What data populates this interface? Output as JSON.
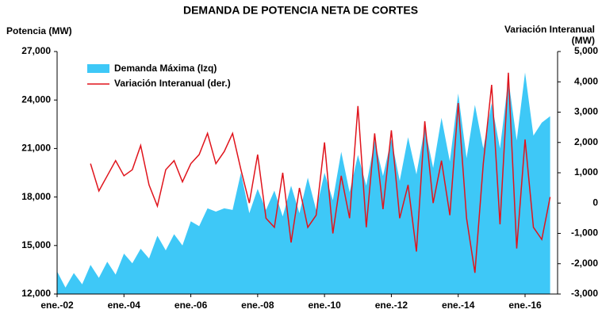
{
  "chart_data": {
    "type": "area-line",
    "title": "DEMANDA DE POTENCIA NETA DE CORTES",
    "y_label": "Potencia (MW)",
    "y2_label": "Variación Interanual (MW)",
    "categories": [
      "ene.-02",
      null,
      null,
      null,
      null,
      null,
      null,
      null,
      "ene.-04",
      null,
      null,
      null,
      null,
      null,
      null,
      null,
      "ene.-06",
      null,
      null,
      null,
      null,
      null,
      null,
      null,
      "ene.-08",
      null,
      null,
      null,
      null,
      null,
      null,
      null,
      "ene.-10",
      null,
      null,
      null,
      null,
      null,
      null,
      null,
      "ene.-12",
      null,
      null,
      null,
      null,
      null,
      null,
      null,
      "ene.-14",
      null,
      null,
      null,
      null,
      null,
      null,
      null,
      "ene.-16",
      null,
      null,
      null
    ],
    "series": [
      {
        "name": "Demanda Máxima (Izq)",
        "color": "#3ec8f7",
        "values": [
          13400,
          12400,
          13300,
          12600,
          13800,
          13000,
          14000,
          13200,
          14500,
          13900,
          14800,
          14200,
          15600,
          14700,
          15700,
          15000,
          16500,
          16200,
          17300,
          17100,
          17300,
          17200,
          19500,
          17000,
          18500,
          17200,
          18400,
          16800,
          18700,
          17000,
          19200,
          17200,
          19500,
          17800,
          20800,
          18300,
          20600,
          18700,
          21500,
          19300,
          21600,
          19000,
          21700,
          19400,
          22300,
          19800,
          22900,
          20200,
          24400,
          20400,
          23700,
          21000,
          23800,
          21000,
          25300,
          21500,
          25700,
          21800,
          22600,
          23000
        ]
      },
      {
        "name": "Variación Interanual (der.)",
        "color": "#e0141c",
        "axis": "y2",
        "values": [
          null,
          null,
          null,
          null,
          1300,
          400,
          900,
          1400,
          900,
          1100,
          1900,
          600,
          -100,
          1100,
          1400,
          700,
          1300,
          1600,
          2300,
          1300,
          1700,
          2300,
          1100,
          0,
          1600,
          -500,
          -800,
          1000,
          -1300,
          500,
          -800,
          -400,
          2000,
          -1000,
          900,
          -500,
          3200,
          -800,
          2300,
          -200,
          2400,
          -500,
          600,
          -1600,
          2700,
          0,
          1400,
          -400,
          3300,
          -500,
          -2300,
          1300,
          3900,
          -700,
          4300,
          -1500,
          2100,
          -800,
          -1200,
          200
        ]
      }
    ],
    "ylim": [
      12000,
      27000
    ],
    "yticks": [
      {
        "value": 12000,
        "label": "12,000"
      },
      {
        "value": 15000,
        "label": "15,000"
      },
      {
        "value": 18000,
        "label": "18,000"
      },
      {
        "value": 21000,
        "label": "21,000"
      },
      {
        "value": 24000,
        "label": "24,000"
      },
      {
        "value": 27000,
        "label": "27,000"
      }
    ],
    "y2lim": [
      -3000,
      5000
    ],
    "y2ticks": [
      {
        "value": -3000,
        "label": "-3,000"
      },
      {
        "value": -2000,
        "label": "-2,000"
      },
      {
        "value": -1000,
        "label": "-1,000"
      },
      0,
      {
        "value": 1000,
        "label": "1,000"
      },
      {
        "value": 2000,
        "label": "2,000"
      },
      {
        "value": 3000,
        "label": "3,000"
      },
      {
        "value": 4000,
        "label": "4,000"
      },
      {
        "value": 5000,
        "label": "5,000"
      }
    ]
  }
}
